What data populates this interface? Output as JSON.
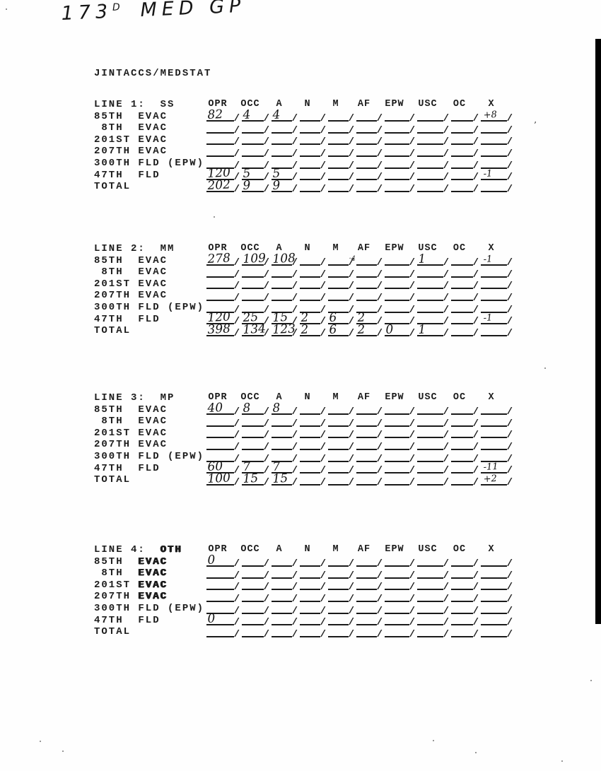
{
  "page": {
    "hw_base": "173",
    "hw_sup": "D",
    "hw_rest": "MED GP",
    "form_title": "JINTACCS/MEDSTAT"
  },
  "columns": [
    "OPR",
    "OCC",
    "A",
    "N",
    "M",
    "AF",
    "EPW",
    "USC",
    "OC",
    "X"
  ],
  "row_labels": [
    "85TH  EVAC",
    " 8TH  EVAC",
    "201ST EVAC",
    "207TH EVAC",
    "300TH FLD (EPW)",
    "47TH  FLD",
    "TOTAL"
  ],
  "sections": [
    {
      "line_prefix": "LINE 1:",
      "line_term": "SS",
      "term_bold": false,
      "bold_evac": false,
      "rows": [
        [
          "82",
          "4",
          "4",
          "",
          "",
          "",
          "",
          "",
          "",
          "+8"
        ],
        [
          "",
          "",
          "",
          "",
          "",
          "",
          "",
          "",
          "",
          ""
        ],
        [
          "",
          "",
          "",
          "",
          "",
          "",
          "",
          "",
          "",
          ""
        ],
        [
          "",
          "",
          "",
          "",
          "",
          "",
          "",
          "",
          "",
          ""
        ],
        [
          "",
          "",
          "",
          "",
          "",
          "",
          "",
          "",
          "",
          ""
        ],
        [
          "120",
          "5",
          "5",
          "",
          "",
          "",
          "",
          "",
          "",
          "-1"
        ],
        [
          "202",
          "9",
          "9",
          "",
          "",
          "",
          "",
          "",
          "",
          ""
        ]
      ]
    },
    {
      "line_prefix": "LINE 2:",
      "line_term": "MM",
      "term_bold": false,
      "bold_evac": false,
      "rows": [
        [
          "278",
          "109",
          "108",
          "",
          "·4",
          "",
          "",
          "1",
          "",
          "-1"
        ],
        [
          "",
          "",
          "",
          "",
          "",
          "",
          "",
          "",
          "",
          ""
        ],
        [
          "",
          "",
          "",
          "",
          "",
          "",
          "",
          "",
          "",
          ""
        ],
        [
          "",
          "",
          "",
          "",
          "",
          "",
          "",
          "",
          "",
          ""
        ],
        [
          "",
          "",
          "",
          "",
          "",
          "",
          "",
          "",
          "",
          ""
        ],
        [
          "120",
          "25",
          "15",
          "2",
          "6",
          "2",
          "",
          "",
          "",
          "-1"
        ],
        [
          "398",
          "134",
          "123",
          "2",
          "6",
          "2",
          "0",
          "1",
          "",
          ""
        ]
      ]
    },
    {
      "line_prefix": "LINE 3:",
      "line_term": "MP",
      "term_bold": false,
      "bold_evac": false,
      "rows": [
        [
          "40",
          "8",
          "8",
          "",
          "",
          "",
          "",
          "",
          "",
          ""
        ],
        [
          "",
          "",
          "",
          "",
          "",
          "",
          "",
          "",
          "",
          ""
        ],
        [
          "",
          "",
          "",
          "",
          "",
          "",
          "",
          "",
          "",
          ""
        ],
        [
          "",
          "",
          "",
          "",
          "",
          "",
          "",
          "",
          "",
          ""
        ],
        [
          "",
          "",
          "",
          "",
          "",
          "",
          "",
          "",
          "",
          ""
        ],
        [
          "60",
          "7",
          "7",
          "",
          "",
          "",
          "",
          "",
          "",
          "-11"
        ],
        [
          "100",
          "15",
          "15",
          "",
          "",
          "",
          "",
          "",
          "",
          "+2"
        ]
      ]
    },
    {
      "line_prefix": "LINE 4:",
      "line_term": "OTH",
      "term_bold": true,
      "bold_evac": true,
      "rows": [
        [
          "0",
          "",
          "",
          "",
          "",
          "",
          "",
          "",
          "",
          ""
        ],
        [
          "",
          "",
          "",
          "",
          "",
          "",
          "",
          "",
          "",
          ""
        ],
        [
          "",
          "",
          "",
          "",
          "",
          "",
          "",
          "",
          "",
          ""
        ],
        [
          "",
          "",
          "",
          "",
          "",
          "",
          "",
          "",
          "",
          ""
        ],
        [
          "",
          "",
          "",
          "",
          "",
          "",
          "",
          "",
          "",
          ""
        ],
        [
          "0",
          "",
          "",
          "",
          "",
          "",
          "",
          "",
          "",
          ""
        ],
        [
          "",
          "",
          "",
          "",
          "",
          "",
          "",
          "",
          "",
          ""
        ]
      ]
    }
  ]
}
